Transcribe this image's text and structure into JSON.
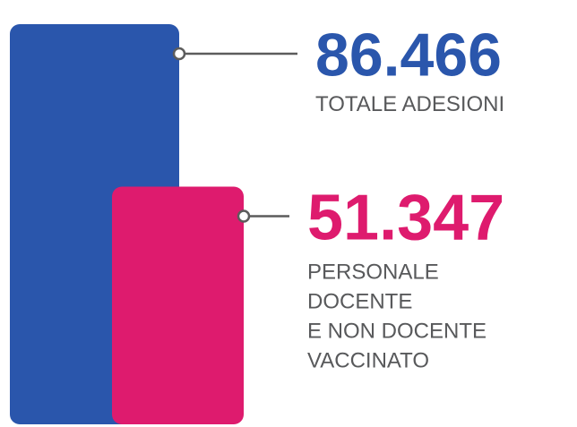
{
  "chart_data": {
    "type": "bar",
    "categories": [
      "TOTALE ADESIONI",
      "PERSONALE DOCENTE E NON DOCENTE VACCINATO"
    ],
    "values": [
      86466,
      51347
    ],
    "value_labels": [
      "86.466",
      "51.347"
    ],
    "label_lines": [
      [
        "TOTALE ADESIONI"
      ],
      [
        "PERSONALE",
        "DOCENTE",
        "E NON DOCENTE",
        "VACCINATO"
      ]
    ],
    "colors": [
      "#2a56ac",
      "#de1b6e"
    ],
    "label_color": "#58595b",
    "connector_color": "#5c5c5c",
    "ylim": [
      0,
      86466
    ]
  }
}
